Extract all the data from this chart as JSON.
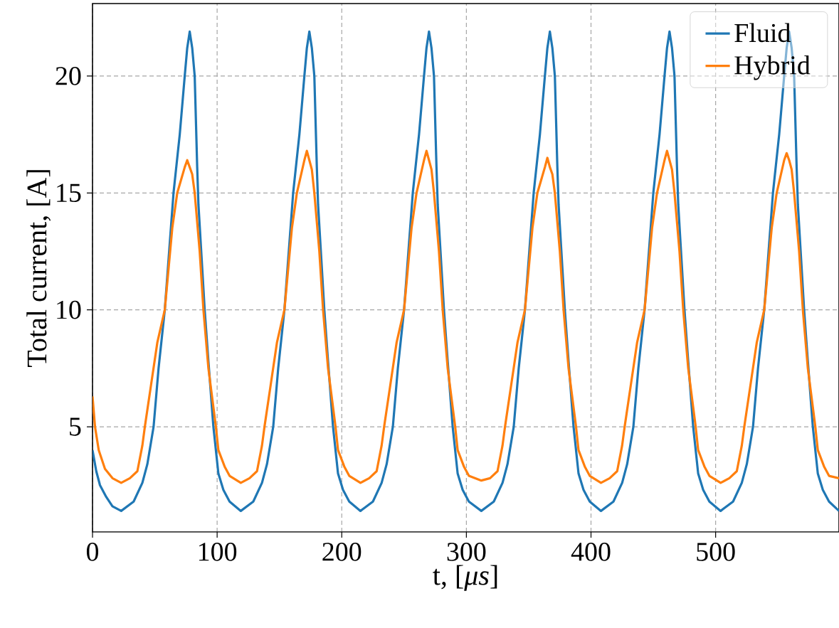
{
  "chart_data": {
    "type": "line",
    "xlabel": "t, [*μs*]",
    "ylabel": "Total current, [A]",
    "xlim": [
      0,
      599
    ],
    "ylim": [
      0.5,
      23.1
    ],
    "xticks": [
      0,
      100,
      200,
      300,
      400,
      500
    ],
    "yticks": [
      5,
      10,
      15,
      20
    ],
    "grid": true,
    "legend": "top right",
    "series": [
      {
        "name": "Fluid",
        "color": "#1f77b4",
        "x": [
          0,
          3,
          6,
          11,
          16,
          23,
          33,
          40,
          44,
          49,
          53,
          58,
          65,
          70,
          74,
          76,
          78,
          80,
          82,
          84,
          85,
          87,
          90,
          93,
          97,
          101,
          105,
          110,
          119,
          129,
          136,
          140,
          145,
          149,
          154,
          161,
          166,
          170,
          172,
          174,
          176,
          178,
          180,
          181,
          183,
          186,
          189,
          193,
          197,
          201,
          206,
          215,
          225,
          232,
          236,
          241,
          245,
          250,
          257,
          262,
          266,
          268,
          270,
          272,
          274,
          276,
          277,
          279,
          282,
          285,
          289,
          293,
          297,
          302,
          312,
          322,
          329,
          333,
          338,
          342,
          347,
          354,
          359,
          363,
          365,
          367,
          369,
          371,
          373,
          374,
          376,
          379,
          382,
          386,
          390,
          394,
          399,
          408,
          418,
          425,
          429,
          434,
          438,
          443,
          450,
          455,
          459,
          461,
          463,
          465,
          467,
          469,
          470,
          472,
          475,
          478,
          482,
          486,
          490,
          495,
          504,
          514,
          521,
          525,
          530,
          534,
          539,
          546,
          551,
          555,
          557,
          559,
          561,
          563,
          565,
          566,
          568,
          571,
          574,
          578,
          582,
          586,
          591,
          599
        ],
        "values": [
          4.0,
          3.1,
          2.5,
          2.0,
          1.6,
          1.4,
          1.8,
          2.6,
          3.4,
          5.0,
          7.5,
          10,
          15,
          17.5,
          20,
          21.2,
          21.9,
          21.2,
          20,
          16.1,
          14.5,
          12.7,
          10,
          7.8,
          5,
          3,
          2.3,
          1.8,
          1.4,
          1.8,
          2.6,
          3.4,
          5.0,
          7.5,
          10,
          15,
          17.5,
          20,
          21.2,
          21.9,
          21.2,
          20,
          16.1,
          14.5,
          12.7,
          10,
          7.8,
          5,
          3,
          2.3,
          1.8,
          1.4,
          1.8,
          2.6,
          3.4,
          5.0,
          7.5,
          10,
          15,
          17.5,
          20,
          21.2,
          21.9,
          21.2,
          20,
          16.1,
          14.5,
          12.7,
          10,
          7.8,
          5,
          3,
          2.3,
          1.8,
          1.4,
          1.8,
          2.6,
          3.4,
          5.0,
          7.5,
          10,
          15,
          17.5,
          20,
          21.2,
          21.9,
          21.2,
          20,
          16.1,
          14.5,
          12.7,
          10,
          7.8,
          5,
          3,
          2.3,
          1.8,
          1.4,
          1.8,
          2.6,
          3.4,
          5.0,
          7.5,
          10,
          15,
          17.5,
          20,
          21.2,
          21.9,
          21.2,
          20,
          16.1,
          14.5,
          12.7,
          10,
          7.8,
          5,
          3,
          2.3,
          1.8,
          1.4,
          1.8,
          2.6,
          3.4,
          5.0,
          7.5,
          10,
          15,
          17.5,
          20,
          21.2,
          21.9,
          21.2,
          20,
          16.1,
          14.5,
          12.7,
          10,
          7.8,
          5,
          3,
          2.3,
          1.8,
          1.4
        ]
      },
      {
        "name": "Hybrid",
        "color": "#ff7f0e",
        "x": [
          0,
          2,
          5,
          10,
          16,
          23,
          30,
          36,
          40,
          42,
          47,
          52,
          58,
          64,
          68,
          74,
          76,
          78,
          80,
          82,
          86,
          89,
          93,
          99,
          101,
          106,
          110,
          119,
          126,
          132,
          136,
          138,
          143,
          148,
          154,
          160,
          164,
          170,
          172,
          174,
          176,
          178,
          182,
          185,
          189,
          195,
          197,
          202,
          206,
          215,
          222,
          228,
          232,
          234,
          239,
          244,
          250,
          256,
          260,
          266,
          268,
          270,
          272,
          274,
          278,
          281,
          285,
          291,
          293,
          298,
          302,
          312,
          319,
          325,
          329,
          331,
          336,
          341,
          347,
          353,
          357,
          363,
          365,
          367,
          369,
          371,
          375,
          378,
          382,
          388,
          390,
          395,
          399,
          408,
          415,
          421,
          425,
          427,
          432,
          437,
          443,
          449,
          453,
          459,
          461,
          463,
          465,
          467,
          471,
          474,
          478,
          484,
          486,
          491,
          495,
          504,
          511,
          517,
          521,
          523,
          528,
          533,
          539,
          545,
          549,
          555,
          557,
          559,
          561,
          563,
          567,
          570,
          574,
          580,
          582,
          587,
          591,
          599
        ],
        "values": [
          6.3,
          5.0,
          4.0,
          3.2,
          2.8,
          2.6,
          2.8,
          3.1,
          4.2,
          5.0,
          6.8,
          8.6,
          10,
          13.5,
          15,
          16.1,
          16.4,
          16.1,
          15.8,
          15.0,
          12.5,
          10,
          7.5,
          5.0,
          4.0,
          3.3,
          2.9,
          2.6,
          2.8,
          3.1,
          4.2,
          5.0,
          6.8,
          8.6,
          10,
          13.5,
          15,
          16.4,
          16.8,
          16.4,
          16.0,
          15.0,
          12.5,
          10,
          7.5,
          5.0,
          4.0,
          3.3,
          2.9,
          2.6,
          2.8,
          3.1,
          4.2,
          5.0,
          6.8,
          8.6,
          10,
          13.5,
          15,
          16.4,
          16.8,
          16.4,
          16.0,
          15.0,
          12.5,
          10,
          7.5,
          5.0,
          4.0,
          3.3,
          2.9,
          2.7,
          2.8,
          3.1,
          4.2,
          5.0,
          6.8,
          8.6,
          10,
          13.5,
          15,
          16.1,
          16.5,
          16.1,
          15.8,
          15.0,
          12.5,
          10,
          7.5,
          5.0,
          4.0,
          3.3,
          2.9,
          2.6,
          2.8,
          3.1,
          4.2,
          5.0,
          6.8,
          8.6,
          10,
          13.5,
          15,
          16.4,
          16.8,
          16.4,
          16.0,
          15.0,
          12.5,
          10,
          7.5,
          5.0,
          4.0,
          3.3,
          2.9,
          2.6,
          2.8,
          3.1,
          4.2,
          5.0,
          6.8,
          8.6,
          10,
          13.5,
          15,
          16.4,
          16.7,
          16.4,
          16.0,
          15.0,
          12.5,
          10,
          7.5,
          5.0,
          4.0,
          3.3,
          2.9,
          2.8
        ]
      }
    ]
  }
}
